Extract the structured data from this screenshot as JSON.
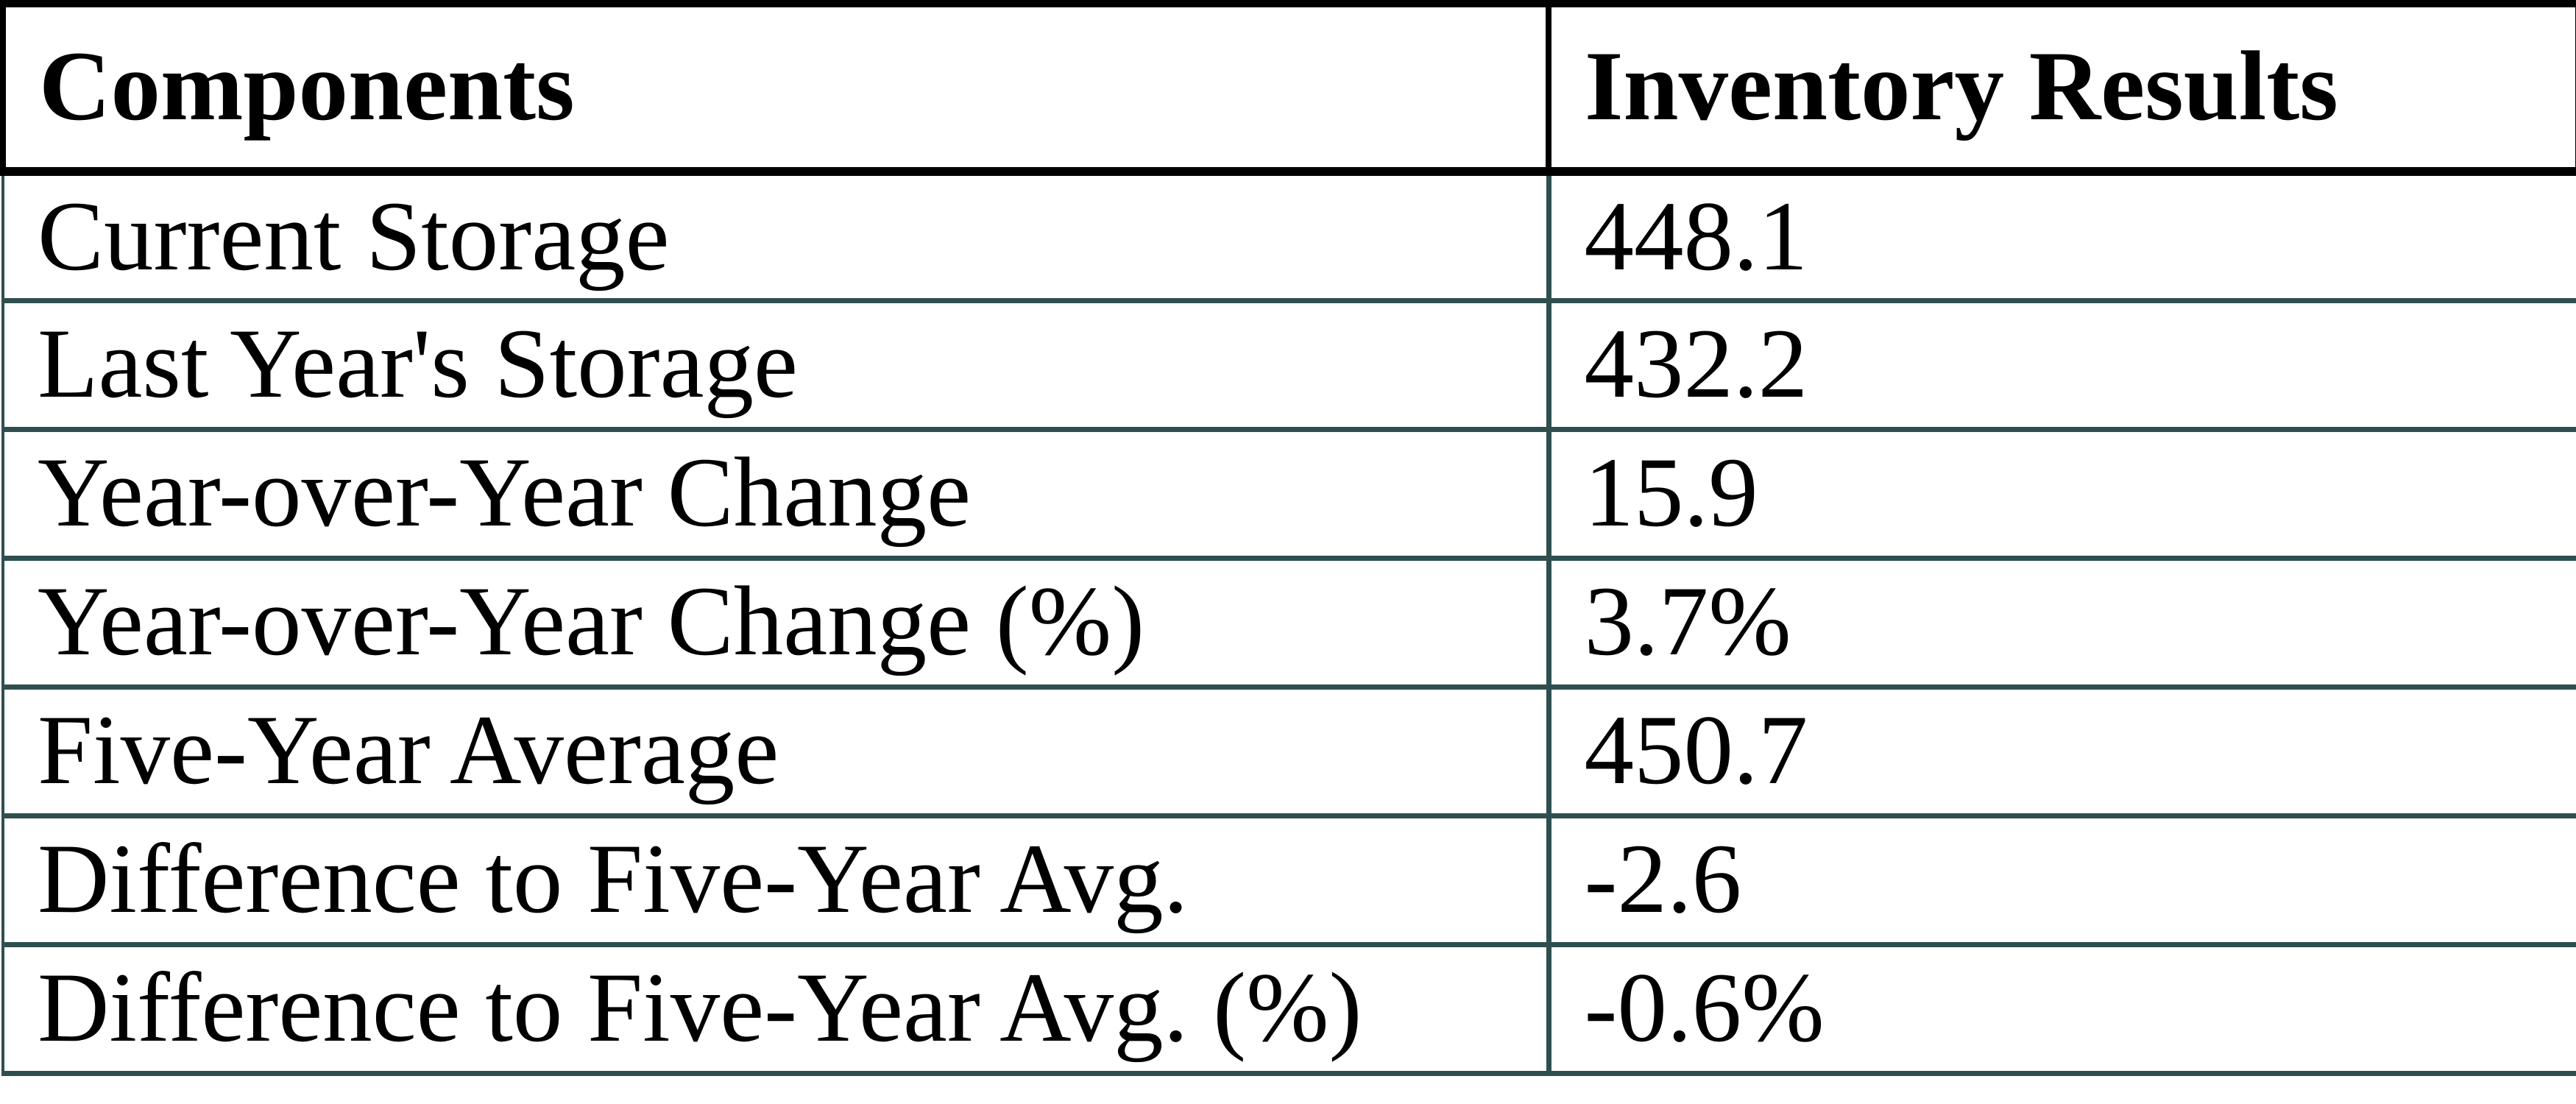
{
  "chart_data": {
    "type": "table",
    "columns": [
      "Components",
      "Inventory Results"
    ],
    "rows": [
      [
        "Current Storage",
        "448.1"
      ],
      [
        "Last Year's Storage",
        "432.2"
      ],
      [
        "Year-over-Year Change",
        "15.9"
      ],
      [
        "Year-over-Year Change (%)",
        "3.7%"
      ],
      [
        "Five-Year Average",
        "450.7"
      ],
      [
        "Difference to Five-Year Avg.",
        "-2.6"
      ],
      [
        "Difference to Five-Year Avg. (%)",
        "-0.6%"
      ]
    ]
  },
  "colors": {
    "border_header": "#000000",
    "border_body": "#2F4F4F",
    "text": "#000000",
    "background": "#FFFFFF"
  }
}
